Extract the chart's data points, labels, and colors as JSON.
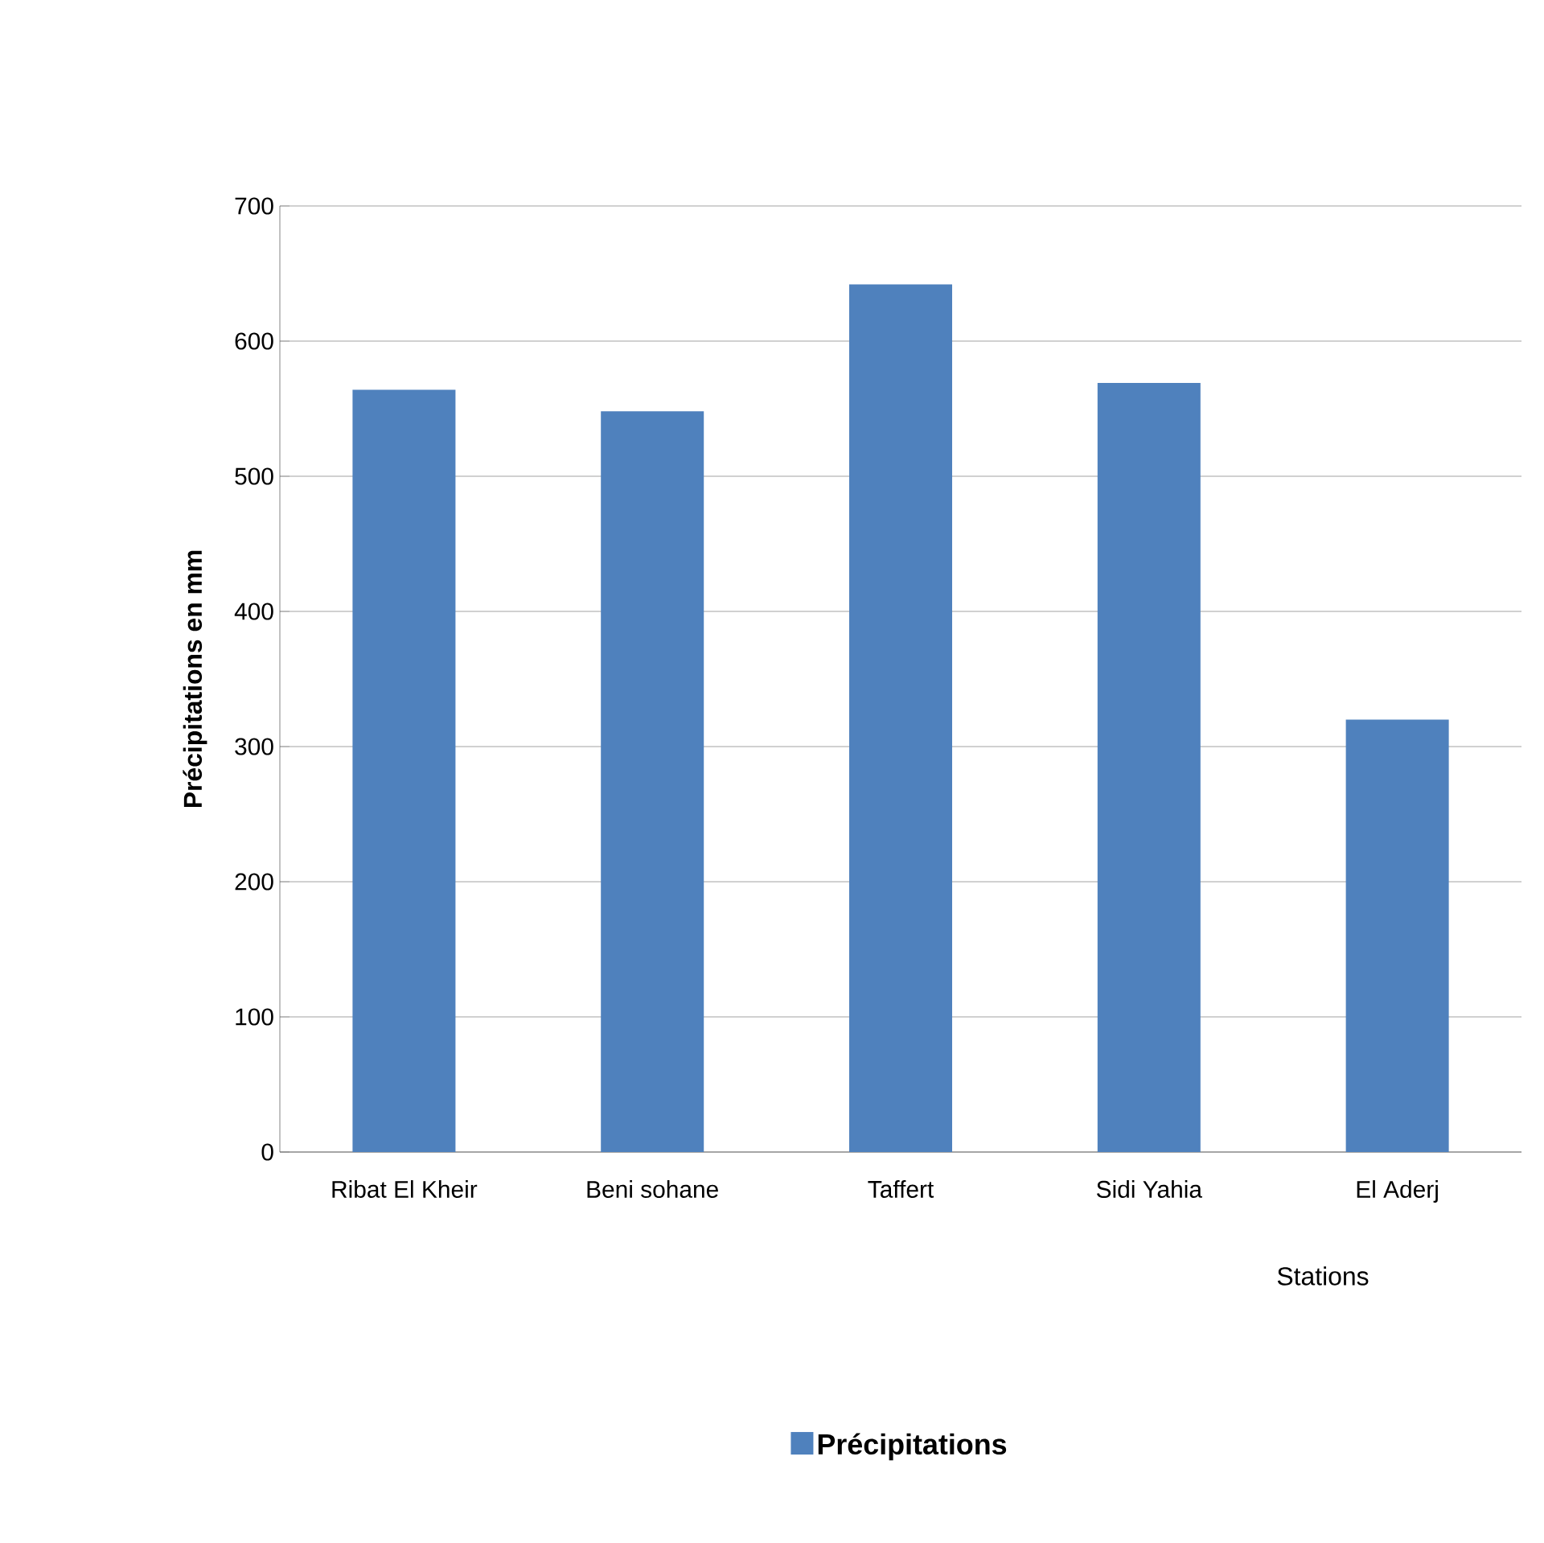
{
  "chart_data": {
    "type": "bar",
    "categories": [
      "Ribat El Kheir",
      "Beni sohane",
      "Taffert",
      "Sidi Yahia",
      "El Aderj"
    ],
    "series": [
      {
        "name": "Précipitations",
        "color": "#4f81bd",
        "values": [
          564,
          548,
          642,
          569,
          320
        ]
      }
    ],
    "xlabel": "Stations",
    "ylabel": "Précipitations en mm",
    "ylim": [
      0,
      700
    ],
    "yticks": [
      0,
      100,
      200,
      300,
      400,
      500,
      600,
      700
    ],
    "grid": "y",
    "legend": "bottom"
  }
}
